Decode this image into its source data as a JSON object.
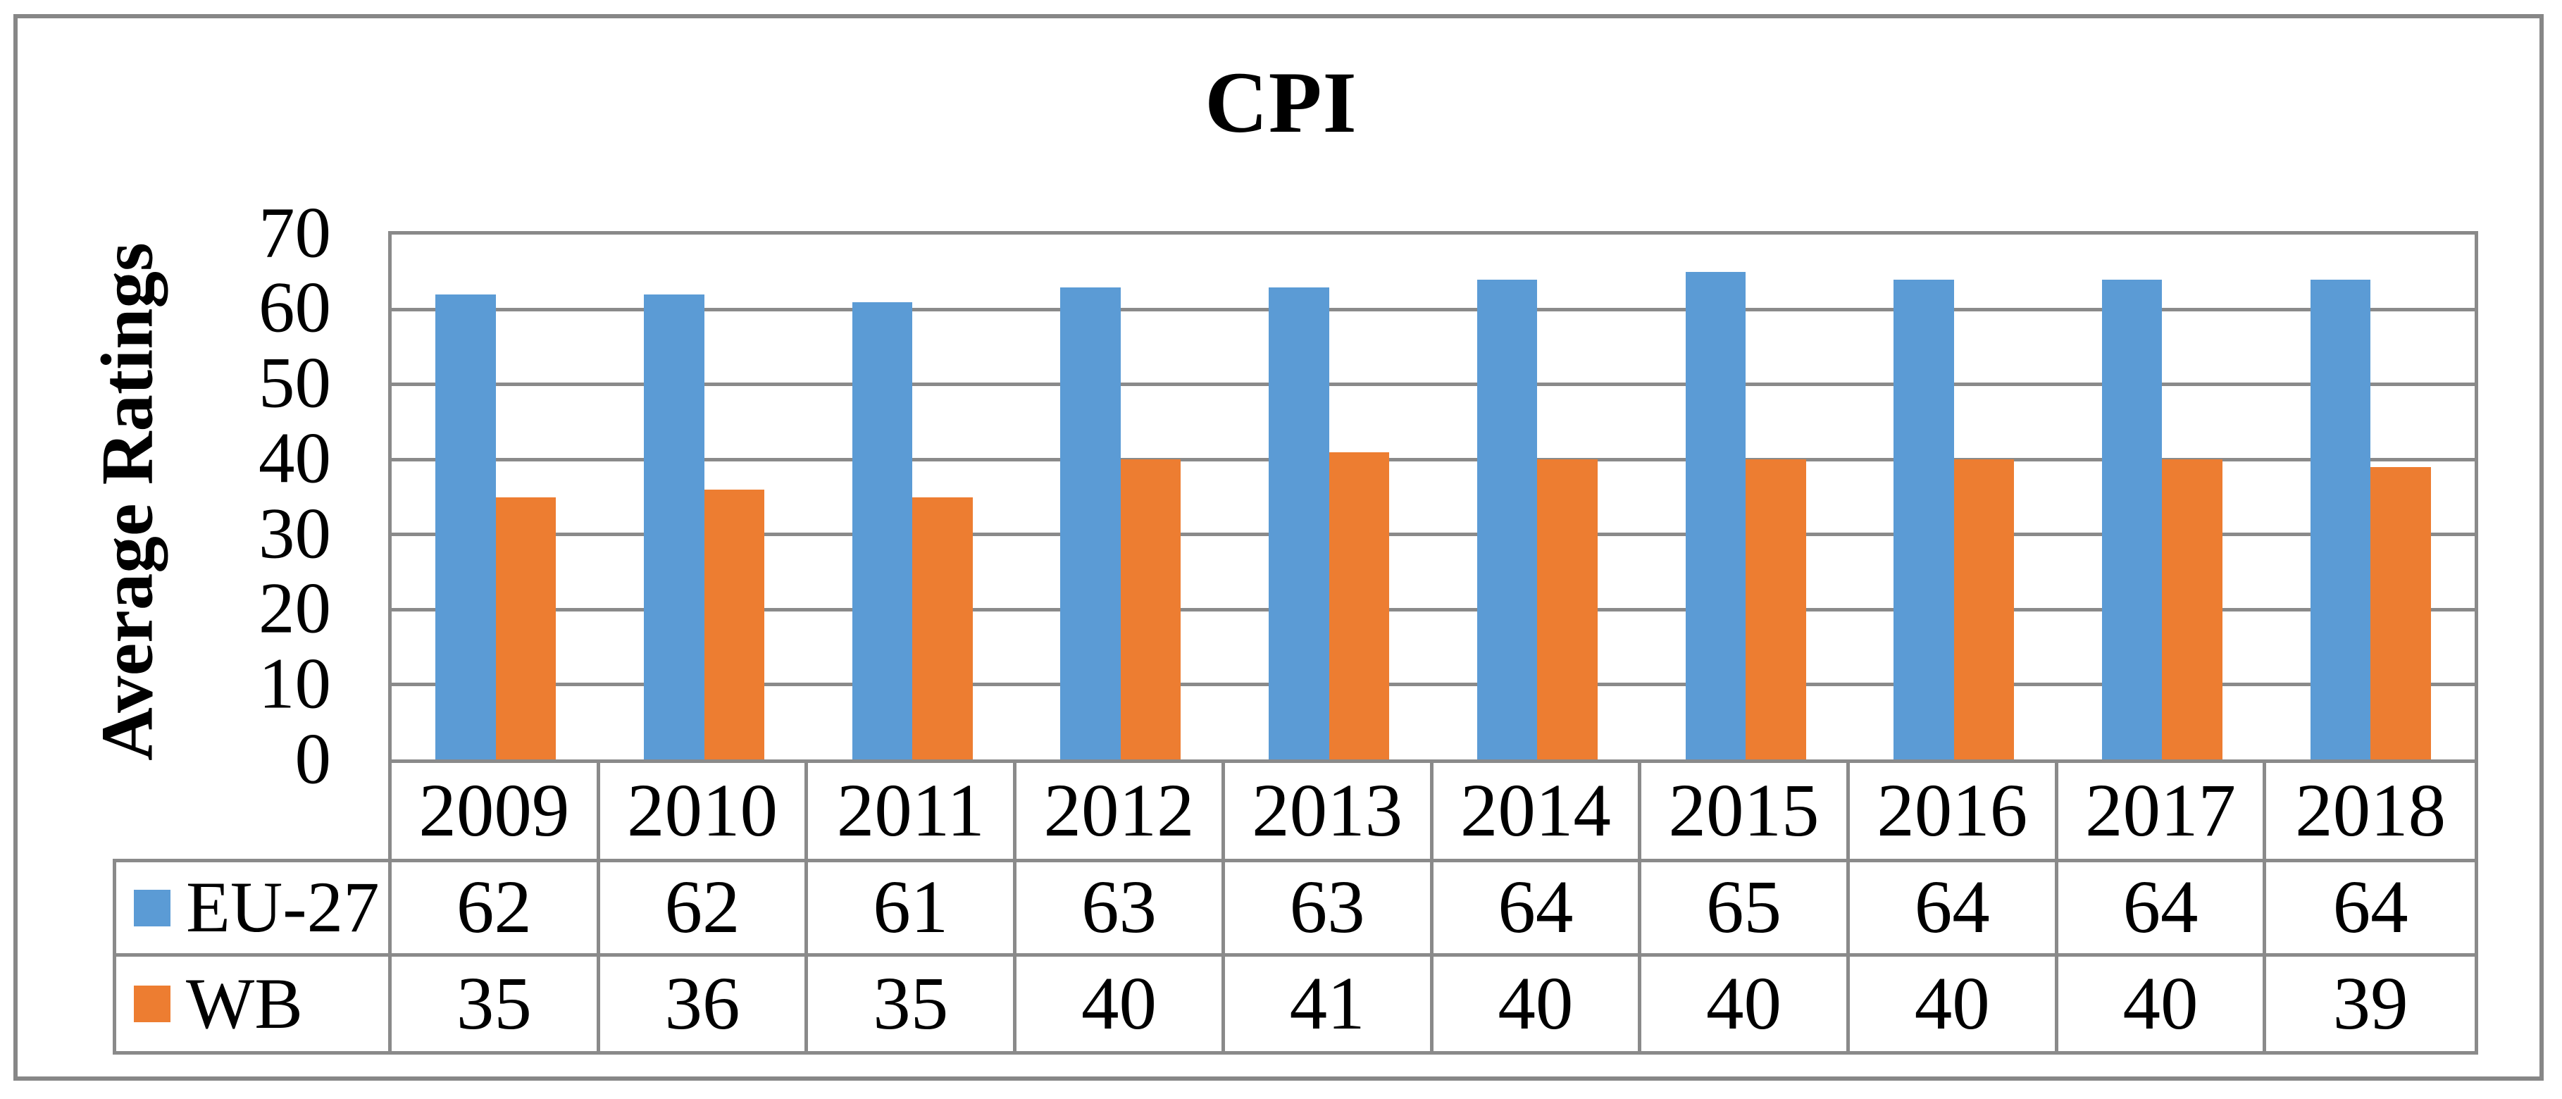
{
  "figure": {
    "title": "CPI"
  },
  "y_axis": {
    "label": "Average Ratings",
    "tick_values": [
      70,
      60,
      50,
      40,
      30,
      20,
      10,
      0
    ]
  },
  "chart_data": {
    "type": "bar",
    "title": "CPI",
    "xlabel": "",
    "ylabel": "Average Ratings",
    "ylim": [
      0,
      70
    ],
    "ytick_step": 10,
    "grid": true,
    "legend_position": "left-of-data-table",
    "has_data_table": true,
    "categories": [
      "2009",
      "2010",
      "2011",
      "2012",
      "2013",
      "2014",
      "2015",
      "2016",
      "2017",
      "2018"
    ],
    "series": [
      {
        "name": "EU-27",
        "color": "#5B9BD5",
        "values": [
          62,
          62,
          61,
          63,
          63,
          64,
          65,
          64,
          64,
          64
        ]
      },
      {
        "name": "WB",
        "color": "#ED7D31",
        "values": [
          35,
          36,
          35,
          40,
          41,
          40,
          40,
          40,
          40,
          39
        ]
      }
    ]
  },
  "colors": {
    "eu27_series": "#5B9BD5",
    "wb_series": "#ED7D31",
    "grid_line": "#8A8A8A",
    "figure_border": "#878787",
    "text": "#000000",
    "background": "#FFFFFF"
  }
}
